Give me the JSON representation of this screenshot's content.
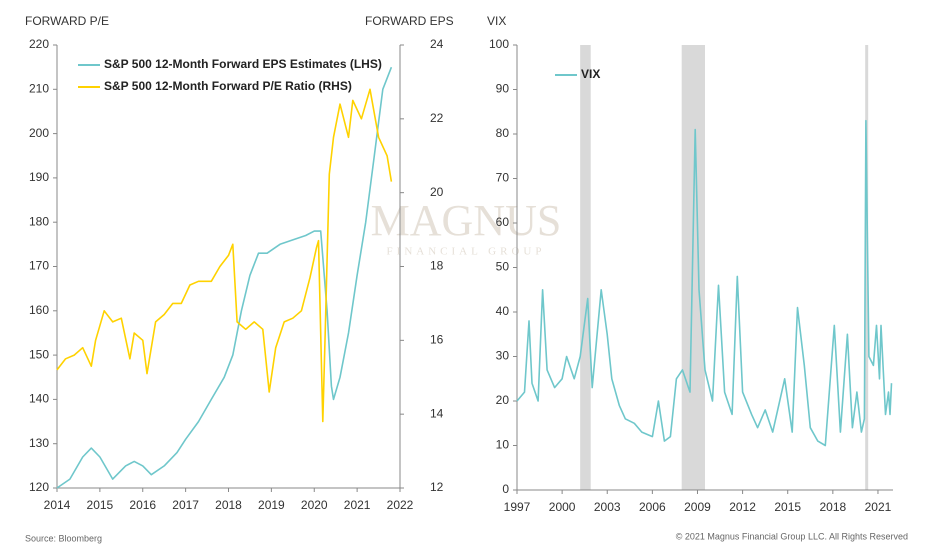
{
  "chart_data": [
    {
      "type": "line",
      "y_label": "FORWARD P/E",
      "y2_label": "FORWARD EPS",
      "xlim": [
        2014,
        2022
      ],
      "xticks": [
        2014,
        2015,
        2016,
        2017,
        2018,
        2019,
        2020,
        2021,
        2022
      ],
      "ylim": [
        120,
        220
      ],
      "yticks": [
        120,
        130,
        140,
        150,
        160,
        170,
        180,
        190,
        200,
        210,
        220
      ],
      "y2lim": [
        12,
        24
      ],
      "y2ticks": [
        12,
        14,
        16,
        18,
        20,
        22,
        24
      ],
      "legend": "upper left",
      "series": [
        {
          "name": "S&P 500 12-Month Forward EPS Estimates (LHS)",
          "color": "#6fc7cb",
          "x": [
            2014.0,
            2014.3,
            2014.6,
            2014.8,
            2015.0,
            2015.3,
            2015.6,
            2015.8,
            2016.0,
            2016.2,
            2016.5,
            2016.8,
            2017.0,
            2017.3,
            2017.6,
            2017.9,
            2018.1,
            2018.3,
            2018.5,
            2018.7,
            2018.9,
            2019.2,
            2019.5,
            2019.8,
            2020.0,
            2020.15,
            2020.3,
            2020.4,
            2020.45,
            2020.6,
            2020.8,
            2021.0,
            2021.2,
            2021.4,
            2021.6,
            2021.8
          ],
          "values": [
            120,
            122,
            127,
            129,
            127,
            122,
            125,
            126,
            125,
            123,
            125,
            128,
            131,
            135,
            140,
            145,
            150,
            160,
            168,
            173,
            173,
            175,
            176,
            177,
            178,
            178,
            160,
            143,
            140,
            145,
            155,
            168,
            180,
            195,
            210,
            215
          ]
        },
        {
          "name": "S&P 500 12-Month Forward P/E Ratio (RHS)",
          "color": "#ffd200",
          "axis": "y2",
          "x": [
            2014.0,
            2014.2,
            2014.4,
            2014.6,
            2014.8,
            2014.9,
            2015.1,
            2015.3,
            2015.5,
            2015.7,
            2015.8,
            2016.0,
            2016.1,
            2016.3,
            2016.5,
            2016.7,
            2016.9,
            2017.1,
            2017.3,
            2017.6,
            2017.8,
            2018.0,
            2018.1,
            2018.2,
            2018.4,
            2018.6,
            2018.8,
            2018.95,
            2019.1,
            2019.3,
            2019.5,
            2019.7,
            2019.9,
            2020.05,
            2020.1,
            2020.2,
            2020.25,
            2020.35,
            2020.45,
            2020.6,
            2020.8,
            2020.9,
            2021.1,
            2021.3,
            2021.5,
            2021.7,
            2021.8
          ],
          "values": [
            15.2,
            15.5,
            15.6,
            15.8,
            15.3,
            16.0,
            16.8,
            16.5,
            16.6,
            15.5,
            16.2,
            16.0,
            15.1,
            16.5,
            16.7,
            17.0,
            17.0,
            17.5,
            17.6,
            17.6,
            18.0,
            18.3,
            18.6,
            16.5,
            16.3,
            16.5,
            16.3,
            14.6,
            15.8,
            16.5,
            16.6,
            16.8,
            17.7,
            18.5,
            18.7,
            13.8,
            16.0,
            20.5,
            21.5,
            22.4,
            21.5,
            22.5,
            22.0,
            22.8,
            21.5,
            21.0,
            20.3
          ]
        }
      ]
    },
    {
      "type": "line",
      "y_label": "VIX",
      "xlim": [
        1997,
        2022
      ],
      "xticks": [
        1997,
        2000,
        2003,
        2006,
        2009,
        2012,
        2015,
        2018,
        2021
      ],
      "ylim": [
        0,
        100
      ],
      "yticks": [
        0,
        10,
        20,
        30,
        40,
        50,
        60,
        70,
        80,
        90,
        100
      ],
      "legend": "upper left",
      "shaded": [
        [
          2001.2,
          2001.9
        ],
        [
          2007.95,
          2009.5
        ],
        [
          2020.15,
          2020.35
        ]
      ],
      "series": [
        {
          "name": "VIX",
          "color": "#6fc7cb",
          "x": [
            1997.0,
            1997.5,
            1997.8,
            1998.0,
            1998.4,
            1998.7,
            1999.0,
            1999.5,
            2000.0,
            2000.3,
            2000.8,
            2001.2,
            2001.7,
            2002.0,
            2002.6,
            2003.0,
            2003.3,
            2003.8,
            2004.2,
            2004.8,
            2005.3,
            2006.0,
            2006.4,
            2006.8,
            2007.2,
            2007.6,
            2008.0,
            2008.5,
            2008.85,
            2009.1,
            2009.5,
            2010.0,
            2010.4,
            2010.8,
            2011.3,
            2011.65,
            2012.0,
            2012.6,
            2013.0,
            2013.5,
            2014.0,
            2014.8,
            2015.3,
            2015.65,
            2016.1,
            2016.5,
            2017.0,
            2017.5,
            2018.1,
            2018.5,
            2018.97,
            2019.3,
            2019.6,
            2019.9,
            2020.1,
            2020.2,
            2020.4,
            2020.7,
            2020.9,
            2021.1,
            2021.2,
            2021.5,
            2021.7,
            2021.8,
            2021.9
          ],
          "values": [
            20,
            22,
            38,
            24,
            20,
            45,
            27,
            23,
            25,
            30,
            25,
            30,
            43,
            23,
            45,
            35,
            25,
            19,
            16,
            15,
            13,
            12,
            20,
            11,
            12,
            25,
            27,
            22,
            81,
            45,
            27,
            20,
            46,
            22,
            17,
            48,
            22,
            17,
            14,
            18,
            13,
            25,
            13,
            41,
            28,
            14,
            11,
            10,
            37,
            13,
            35,
            14,
            22,
            13,
            16,
            83,
            30,
            28,
            37,
            25,
            37,
            17,
            22,
            17,
            24
          ]
        }
      ]
    }
  ],
  "watermark": {
    "name": "MAGNUS",
    "sub": "FINANCIAL GROUP"
  },
  "footer": {
    "source": "Source: Bloomberg",
    "copyright": "© 2021 Magnus Financial Group LLC. All Rights Reserved"
  }
}
